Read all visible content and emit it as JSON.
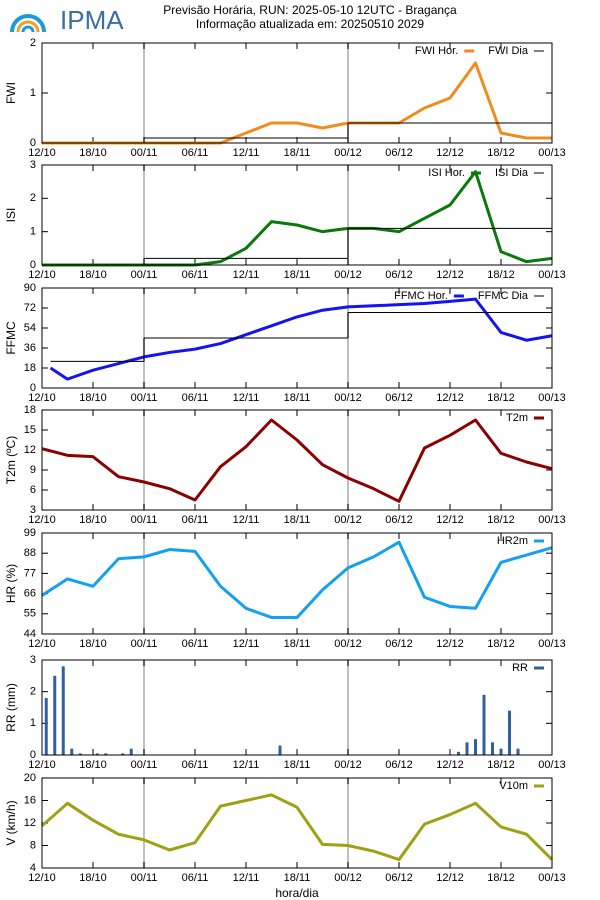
{
  "logo": "IPMA",
  "title": "Previsão Horária, RUN: 2025-05-10 12UTC - Bragança",
  "subtitle": "Informação atualizada em: 20250510 2029",
  "xlabel": "hora/dia",
  "chart_data": [
    {
      "type": "line",
      "ylabel": "FWI",
      "xlim": [
        0,
        60
      ],
      "ylim": [
        0,
        2
      ],
      "yticks": [
        0,
        1,
        2
      ],
      "vlines": [
        12,
        36
      ],
      "xticks": [
        {
          "value": 0,
          "label": "12/10"
        },
        {
          "value": 6,
          "label": "18/10"
        },
        {
          "value": 12,
          "label": "00/11"
        },
        {
          "value": 18,
          "label": "06/11"
        },
        {
          "value": 24,
          "label": "12/11"
        },
        {
          "value": 30,
          "label": "18/11"
        },
        {
          "value": 36,
          "label": "00/12"
        },
        {
          "value": 42,
          "label": "06/12"
        },
        {
          "value": 48,
          "label": "12/12"
        },
        {
          "value": 54,
          "label": "18/12"
        },
        {
          "value": 60,
          "label": "00/13"
        }
      ],
      "x": [
        0,
        3,
        6,
        9,
        12,
        15,
        18,
        21,
        24,
        27,
        30,
        33,
        36,
        39,
        42,
        45,
        48,
        51,
        54,
        57,
        60
      ],
      "series": [
        {
          "name": "FWI Hor.",
          "color": "#f08c1e",
          "values": [
            0,
            0,
            0,
            0,
            0,
            0,
            0,
            0,
            0.2,
            0.4,
            0.4,
            0.3,
            0.4,
            0.4,
            0.4,
            0.7,
            0.9,
            1.6,
            0.2,
            0.1,
            0.1
          ]
        },
        {
          "name": "FWI Dia",
          "color": "#000000",
          "step": true,
          "x": [
            0,
            12,
            36
          ],
          "values": [
            0,
            0.1,
            0.4
          ]
        }
      ]
    },
    {
      "type": "line",
      "ylabel": "ISI",
      "xlim": [
        0,
        60
      ],
      "ylim": [
        0,
        3
      ],
      "yticks": [
        0,
        1,
        2,
        3
      ],
      "vlines": [
        12,
        36
      ],
      "xticks": [
        {
          "value": 0,
          "label": "12/10"
        },
        {
          "value": 6,
          "label": "18/10"
        },
        {
          "value": 12,
          "label": "00/11"
        },
        {
          "value": 18,
          "label": "06/11"
        },
        {
          "value": 24,
          "label": "12/11"
        },
        {
          "value": 30,
          "label": "18/11"
        },
        {
          "value": 36,
          "label": "00/12"
        },
        {
          "value": 42,
          "label": "06/12"
        },
        {
          "value": 48,
          "label": "12/12"
        },
        {
          "value": 54,
          "label": "18/12"
        },
        {
          "value": 60,
          "label": "00/13"
        }
      ],
      "x": [
        0,
        3,
        6,
        9,
        12,
        15,
        18,
        21,
        24,
        27,
        30,
        33,
        36,
        39,
        42,
        45,
        48,
        51,
        54,
        57,
        60
      ],
      "series": [
        {
          "name": "ISI Hor.",
          "color": "#0a780a",
          "values": [
            0,
            0,
            0,
            0,
            0,
            0,
            0,
            0.1,
            0.5,
            1.3,
            1.2,
            1.0,
            1.1,
            1.1,
            1.0,
            1.4,
            1.8,
            2.8,
            0.4,
            0.1,
            0.2
          ]
        },
        {
          "name": "ISI Dia",
          "color": "#000000",
          "step": true,
          "x": [
            0,
            12,
            36
          ],
          "values": [
            0,
            0.2,
            1.1
          ]
        }
      ]
    },
    {
      "type": "line",
      "ylabel": "FFMC",
      "xlim": [
        0,
        60
      ],
      "ylim": [
        0,
        90
      ],
      "yticks": [
        0,
        18,
        36,
        54,
        72,
        90
      ],
      "vlines": [
        12,
        36
      ],
      "xticks": [
        {
          "value": 0,
          "label": "12/10"
        },
        {
          "value": 6,
          "label": "18/10"
        },
        {
          "value": 12,
          "label": "00/11"
        },
        {
          "value": 18,
          "label": "06/11"
        },
        {
          "value": 24,
          "label": "12/11"
        },
        {
          "value": 30,
          "label": "18/11"
        },
        {
          "value": 36,
          "label": "00/12"
        },
        {
          "value": 42,
          "label": "06/12"
        },
        {
          "value": 48,
          "label": "12/12"
        },
        {
          "value": 54,
          "label": "18/12"
        },
        {
          "value": 60,
          "label": "00/13"
        }
      ],
      "x": [
        1,
        3,
        6,
        9,
        12,
        15,
        18,
        21,
        24,
        27,
        30,
        33,
        36,
        39,
        42,
        45,
        48,
        51,
        54,
        57,
        60
      ],
      "series": [
        {
          "name": "FFMC Hor.",
          "color": "#1414f0",
          "values": [
            18,
            8,
            16,
            22,
            28,
            32,
            35,
            40,
            48,
            56,
            64,
            70,
            73,
            74,
            75,
            76,
            78,
            80,
            50,
            43,
            47
          ]
        },
        {
          "name": "FFMC Dia",
          "color": "#000000",
          "step": true,
          "x": [
            1,
            12,
            36
          ],
          "values": [
            24,
            45,
            68
          ]
        }
      ]
    },
    {
      "type": "line",
      "ylabel": "T2m (ºC)",
      "xlim": [
        0,
        60
      ],
      "ylim": [
        3,
        18
      ],
      "yticks": [
        3,
        6,
        9,
        12,
        15,
        18
      ],
      "vlines": [
        12,
        36
      ],
      "xticks": [
        {
          "value": 0,
          "label": "12/10"
        },
        {
          "value": 6,
          "label": "18/10"
        },
        {
          "value": 12,
          "label": "00/11"
        },
        {
          "value": 18,
          "label": "06/11"
        },
        {
          "value": 24,
          "label": "12/11"
        },
        {
          "value": 30,
          "label": "18/11"
        },
        {
          "value": 36,
          "label": "00/12"
        },
        {
          "value": 42,
          "label": "06/12"
        },
        {
          "value": 48,
          "label": "12/12"
        },
        {
          "value": 54,
          "label": "18/12"
        },
        {
          "value": 60,
          "label": "00/13"
        }
      ],
      "x": [
        0,
        3,
        6,
        9,
        12,
        15,
        18,
        21,
        24,
        27,
        30,
        33,
        36,
        39,
        42,
        45,
        48,
        51,
        54,
        57,
        60
      ],
      "series": [
        {
          "name": "T2m",
          "color": "#8b0000",
          "values": [
            12.2,
            11.2,
            11.0,
            8.0,
            7.2,
            6.2,
            4.5,
            9.5,
            12.5,
            16.5,
            13.5,
            9.8,
            7.8,
            6.2,
            4.3,
            12.3,
            14.2,
            16.5,
            11.5,
            10.2,
            9.2
          ]
        }
      ]
    },
    {
      "type": "line",
      "ylabel": "HR (%)",
      "xlim": [
        0,
        60
      ],
      "ylim": [
        44,
        99
      ],
      "yticks": [
        44,
        55,
        66,
        77,
        88,
        99
      ],
      "vlines": [
        12,
        36
      ],
      "xticks": [
        {
          "value": 0,
          "label": "12/10"
        },
        {
          "value": 6,
          "label": "18/10"
        },
        {
          "value": 12,
          "label": "00/11"
        },
        {
          "value": 18,
          "label": "06/11"
        },
        {
          "value": 24,
          "label": "12/11"
        },
        {
          "value": 30,
          "label": "18/11"
        },
        {
          "value": 36,
          "label": "00/12"
        },
        {
          "value": 42,
          "label": "06/12"
        },
        {
          "value": 48,
          "label": "12/12"
        },
        {
          "value": 54,
          "label": "18/12"
        },
        {
          "value": 60,
          "label": "00/13"
        }
      ],
      "x": [
        0,
        3,
        6,
        9,
        12,
        15,
        18,
        21,
        24,
        27,
        30,
        33,
        36,
        39,
        42,
        45,
        48,
        51,
        54,
        57,
        60
      ],
      "series": [
        {
          "name": "HR2m",
          "color": "#14a0f0",
          "values": [
            65,
            74,
            70,
            85,
            86,
            90,
            89,
            70,
            58,
            53,
            53,
            68,
            80,
            86,
            94,
            64,
            59,
            58,
            83,
            87,
            91
          ]
        }
      ]
    },
    {
      "type": "bar",
      "ylabel": "RR (mm)",
      "xlim": [
        0,
        60
      ],
      "ylim": [
        0,
        3
      ],
      "yticks": [
        0,
        1,
        2,
        3
      ],
      "vlines": [
        12,
        36
      ],
      "xticks": [
        {
          "value": 0,
          "label": "12/10"
        },
        {
          "value": 6,
          "label": "18/10"
        },
        {
          "value": 12,
          "label": "00/11"
        },
        {
          "value": 18,
          "label": "06/11"
        },
        {
          "value": 24,
          "label": "12/11"
        },
        {
          "value": 30,
          "label": "18/11"
        },
        {
          "value": 36,
          "label": "00/12"
        },
        {
          "value": 42,
          "label": "06/12"
        },
        {
          "value": 48,
          "label": "12/12"
        },
        {
          "value": 54,
          "label": "18/12"
        },
        {
          "value": 60,
          "label": "00/13"
        }
      ],
      "x": [
        0.5,
        1.5,
        2.5,
        3.5,
        4.5,
        6.5,
        7.5,
        9.5,
        10.5,
        28,
        49,
        50,
        51,
        52,
        53,
        54,
        55,
        56
      ],
      "series": [
        {
          "name": "RR",
          "color": "#3060a0",
          "values": [
            1.8,
            2.5,
            2.8,
            0.2,
            0.05,
            0.05,
            0.05,
            0.05,
            0.2,
            0.3,
            0.1,
            0.4,
            0.5,
            1.9,
            0.4,
            0.2,
            1.4,
            0.2
          ]
        }
      ]
    },
    {
      "type": "line",
      "ylabel": "V (km/h)",
      "xlim": [
        0,
        60
      ],
      "ylim": [
        4,
        20
      ],
      "yticks": [
        4,
        8,
        12,
        16,
        20
      ],
      "vlines": [
        12,
        36
      ],
      "xticks": [
        {
          "value": 0,
          "label": "12/10"
        },
        {
          "value": 6,
          "label": "18/10"
        },
        {
          "value": 12,
          "label": "00/11"
        },
        {
          "value": 18,
          "label": "06/11"
        },
        {
          "value": 24,
          "label": "12/11"
        },
        {
          "value": 30,
          "label": "18/11"
        },
        {
          "value": 36,
          "label": "00/12"
        },
        {
          "value": 42,
          "label": "06/12"
        },
        {
          "value": 48,
          "label": "12/12"
        },
        {
          "value": 54,
          "label": "18/12"
        },
        {
          "value": 60,
          "label": "00/13"
        }
      ],
      "x": [
        0,
        3,
        6,
        9,
        12,
        15,
        18,
        21,
        24,
        27,
        30,
        33,
        36,
        39,
        42,
        45,
        48,
        51,
        54,
        57,
        60
      ],
      "series": [
        {
          "name": "V10m",
          "color": "#a0a014",
          "values": [
            11.5,
            15.5,
            12.5,
            10,
            9,
            7.2,
            8.5,
            15,
            16,
            17,
            14.8,
            8.2,
            8,
            7,
            5.5,
            11.8,
            13.5,
            15.5,
            11.3,
            10,
            5.5
          ]
        }
      ]
    }
  ]
}
